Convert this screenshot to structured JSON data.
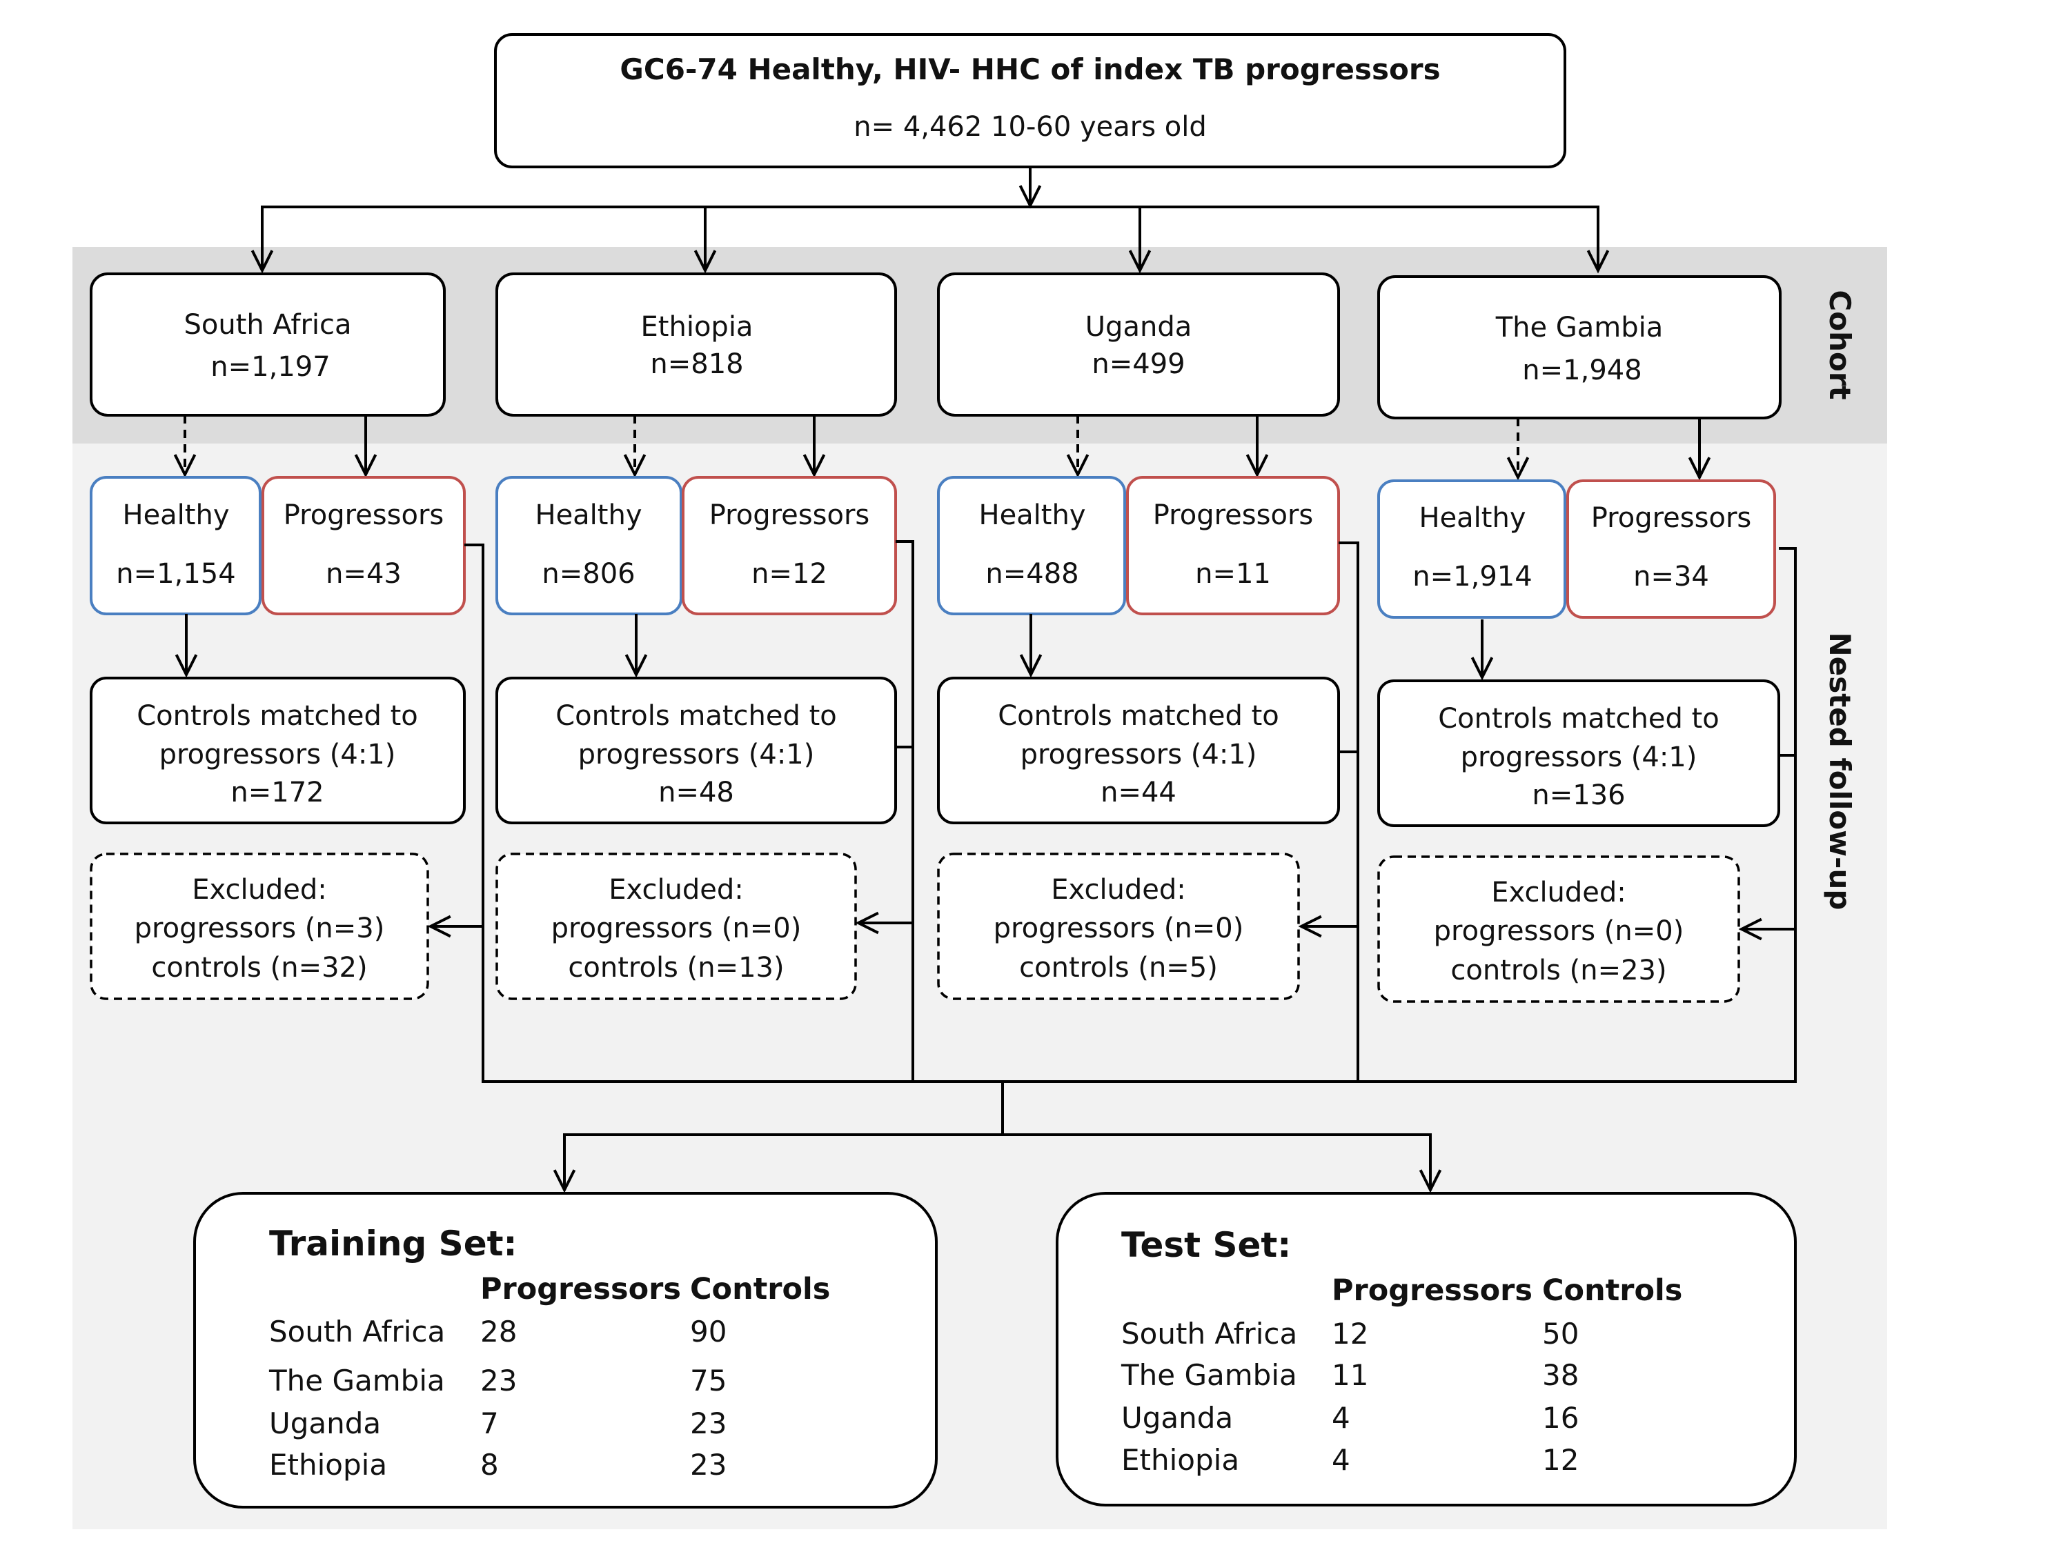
{
  "top": {
    "title": "GC6-74 Healthy, HIV- HHC of index TB progressors",
    "subtitle": "n= 4,462   10-60 years old"
  },
  "side_labels": {
    "cohort": "Cohort",
    "nested": "Nested follow-up"
  },
  "cohorts": [
    {
      "name": "South Africa",
      "n": "n=1,197",
      "healthy_label": "Healthy",
      "healthy_n": "n=1,154",
      "prog_label": "Progressors",
      "prog_n": "n=43",
      "controls_line1": "Controls matched to",
      "controls_line2": "progressors (4:1)",
      "controls_n": "n=172",
      "excl_line1": "Excluded:",
      "excl_line2": "progressors (n=3)",
      "excl_line3": "controls (n=32)"
    },
    {
      "name": "Ethiopia",
      "n": "n=818",
      "healthy_label": "Healthy",
      "healthy_n": "n=806",
      "prog_label": "Progressors",
      "prog_n": "n=12",
      "controls_line1": "Controls matched to",
      "controls_line2": "progressors (4:1)",
      "controls_n": "n=48",
      "excl_line1": "Excluded:",
      "excl_line2": "progressors (n=0)",
      "excl_line3": "controls (n=13)"
    },
    {
      "name": "Uganda",
      "n": "n=499",
      "healthy_label": "Healthy",
      "healthy_n": "n=488",
      "prog_label": "Progressors",
      "prog_n": "n=11",
      "controls_line1": "Controls matched to",
      "controls_line2": "progressors (4:1)",
      "controls_n": "n=44",
      "excl_line1": "Excluded:",
      "excl_line2": "progressors (n=0)",
      "excl_line3": "controls (n=5)"
    },
    {
      "name": "The Gambia",
      "n": "n=1,948",
      "healthy_label": "Healthy",
      "healthy_n": "n=1,914",
      "prog_label": "Progressors",
      "prog_n": "n=34",
      "controls_line1": "Controls matched to",
      "controls_line2": "progressors (4:1)",
      "controls_n": "n=136",
      "excl_line1": "Excluded:",
      "excl_line2": "progressors (n=0)",
      "excl_line3": "controls (n=23)"
    }
  ],
  "training": {
    "title": "Training Set:",
    "col_prog": "Progressors",
    "col_ctrl": "Controls",
    "rows": [
      {
        "site": "South Africa",
        "prog": "28",
        "ctrl": "90"
      },
      {
        "site": "The Gambia",
        "prog": "23",
        "ctrl": "75"
      },
      {
        "site": "Uganda",
        "prog": "7",
        "ctrl": "23"
      },
      {
        "site": "Ethiopia",
        "prog": "8",
        "ctrl": "23"
      }
    ]
  },
  "test": {
    "title": "Test Set:",
    "col_prog": "Progressors",
    "col_ctrl": "Controls",
    "rows": [
      {
        "site": "South Africa",
        "prog": "12",
        "ctrl": "50"
      },
      {
        "site": "The Gambia",
        "prog": "11",
        "ctrl": "38"
      },
      {
        "site": "Uganda",
        "prog": "4",
        "ctrl": "16"
      },
      {
        "site": "Ethiopia",
        "prog": "4",
        "ctrl": "12"
      }
    ]
  }
}
